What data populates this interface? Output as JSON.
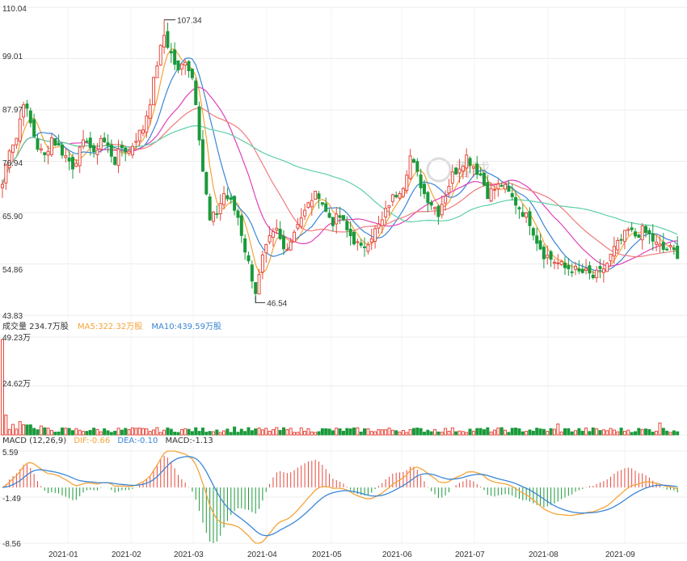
{
  "colors": {
    "up": "#e5493d",
    "down": "#1a9a3a",
    "ma5": "#f5a33a",
    "ma10": "#3a86d6",
    "ma20": "#e040b8",
    "ma30": "#f07c7c",
    "ma60": "#5fd0a7",
    "dif": "#f5a33a",
    "dea": "#3a86d6",
    "grid": "#ececec",
    "text": "#333333"
  },
  "watermark": "雪球",
  "chart_data": [
    {
      "type": "candlestick",
      "panel": "price",
      "y_ticks": [
        "110.04",
        "99.01",
        "87.97",
        "76.94",
        "65.90",
        "54.86",
        "43.83"
      ],
      "ylim": [
        43.83,
        110.04
      ],
      "x_ticks": [
        "2021-01",
        "2021-02",
        "2021-03",
        "2021-04",
        "2021-05",
        "2021-06",
        "2021-07",
        "2021-08",
        "2021-09"
      ],
      "annotations": [
        {
          "label": "107.34",
          "value": 107.34,
          "kind": "high"
        },
        {
          "label": "46.54",
          "value": 46.54,
          "kind": "low"
        }
      ],
      "anchors": [
        [
          0,
          72
        ],
        [
          2,
          80
        ],
        [
          4,
          82
        ],
        [
          6,
          90
        ],
        [
          8,
          85
        ],
        [
          10,
          80
        ],
        [
          12,
          78
        ],
        [
          14,
          82
        ],
        [
          16,
          80
        ],
        [
          18,
          78
        ],
        [
          20,
          76
        ],
        [
          22,
          79
        ],
        [
          24,
          82
        ],
        [
          26,
          78
        ],
        [
          28,
          82
        ],
        [
          30,
          80
        ],
        [
          32,
          77
        ],
        [
          34,
          80
        ],
        [
          36,
          79
        ],
        [
          38,
          82
        ],
        [
          40,
          84
        ],
        [
          42,
          90
        ],
        [
          44,
          98
        ],
        [
          46,
          104
        ],
        [
          48,
          100
        ],
        [
          50,
          96
        ],
        [
          52,
          99
        ],
        [
          54,
          95
        ],
        [
          55,
          90
        ],
        [
          57,
          75
        ],
        [
          59,
          64
        ],
        [
          61,
          66
        ],
        [
          63,
          70
        ],
        [
          65,
          68
        ],
        [
          67,
          65
        ],
        [
          69,
          58
        ],
        [
          71,
          52
        ],
        [
          72,
          48
        ],
        [
          74,
          56
        ],
        [
          76,
          60
        ],
        [
          78,
          62
        ],
        [
          80,
          58
        ],
        [
          82,
          60
        ],
        [
          84,
          64
        ],
        [
          86,
          66
        ],
        [
          88,
          69
        ],
        [
          90,
          70
        ],
        [
          92,
          66
        ],
        [
          94,
          64
        ],
        [
          96,
          65
        ],
        [
          98,
          62
        ],
        [
          100,
          60
        ],
        [
          102,
          58
        ],
        [
          104,
          60
        ],
        [
          106,
          62
        ],
        [
          108,
          64
        ],
        [
          110,
          68
        ],
        [
          112,
          70
        ],
        [
          114,
          72
        ],
        [
          116,
          78
        ],
        [
          118,
          74
        ],
        [
          120,
          70
        ],
        [
          122,
          68
        ],
        [
          124,
          66
        ],
        [
          126,
          70
        ],
        [
          128,
          74
        ],
        [
          130,
          76
        ],
        [
          132,
          78
        ],
        [
          134,
          76
        ],
        [
          136,
          74
        ],
        [
          138,
          70
        ],
        [
          140,
          71
        ],
        [
          142,
          72
        ],
        [
          144,
          70
        ],
        [
          146,
          68
        ],
        [
          148,
          66
        ],
        [
          150,
          64
        ],
        [
          152,
          60
        ],
        [
          154,
          57
        ],
        [
          156,
          56
        ],
        [
          158,
          55
        ],
        [
          160,
          54
        ],
        [
          162,
          54
        ],
        [
          164,
          53
        ],
        [
          166,
          53
        ],
        [
          168,
          52
        ],
        [
          170,
          53
        ],
        [
          172,
          55
        ],
        [
          174,
          58
        ],
        [
          176,
          60
        ],
        [
          178,
          62
        ],
        [
          180,
          61
        ],
        [
          182,
          62
        ],
        [
          184,
          61
        ],
        [
          186,
          59
        ],
        [
          188,
          58
        ],
        [
          190,
          58
        ],
        [
          192,
          57
        ]
      ],
      "ma_periods": [
        5,
        10,
        20,
        30,
        60
      ]
    },
    {
      "type": "bar",
      "panel": "volume",
      "legend": [
        {
          "text": "成交量 234.7万股",
          "color": "text"
        },
        {
          "text": "MA5:322.32万股",
          "color": "ma5"
        },
        {
          "text": "MA10:439.59万股",
          "color": "ma10"
        }
      ],
      "y_ticks": [
        "49.23万",
        "24.62万"
      ],
      "ylim": [
        0,
        49.23
      ],
      "unit": "万股",
      "latest": 234.7
    },
    {
      "type": "bar+line",
      "panel": "macd",
      "legend": [
        {
          "text": "MACD (12,26,9)",
          "color": "text"
        },
        {
          "text": "DIF:-0.66",
          "color": "dif"
        },
        {
          "text": "DEA:-0.10",
          "color": "dea"
        },
        {
          "text": "MACD:-1.13",
          "color": "text"
        }
      ],
      "y_ticks": [
        "5.59",
        "-1.49",
        "-8.56"
      ],
      "ylim": [
        -8.56,
        5.59
      ],
      "params": [
        12,
        26,
        9
      ],
      "latest": {
        "dif": -0.66,
        "dea": -0.1,
        "macd": -1.13
      }
    }
  ]
}
